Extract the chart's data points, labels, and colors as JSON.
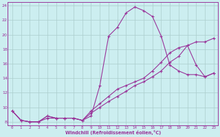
{
  "xlabel": "Windchill (Refroidissement éolien,°C)",
  "bg_color": "#cceef0",
  "line_color": "#993399",
  "grid_color": "#aacccc",
  "xlim": [
    -0.5,
    23.5
  ],
  "ylim": [
    7.5,
    24.5
  ],
  "xticks": [
    0,
    1,
    2,
    3,
    4,
    5,
    6,
    7,
    8,
    9,
    10,
    11,
    12,
    13,
    14,
    15,
    16,
    17,
    18,
    19,
    20,
    21,
    22,
    23
  ],
  "yticks": [
    8,
    10,
    12,
    14,
    16,
    18,
    20,
    22,
    24
  ],
  "line1_x": [
    0,
    1,
    2,
    3,
    4,
    5,
    6,
    7,
    8,
    9,
    10,
    11,
    12,
    13,
    14,
    15,
    16,
    17,
    18,
    19,
    20,
    21,
    22,
    23
  ],
  "line1_y": [
    9.5,
    8.2,
    8.0,
    8.0,
    8.5,
    8.5,
    8.5,
    8.5,
    8.2,
    8.8,
    13.0,
    19.8,
    21.0,
    23.0,
    23.8,
    23.3,
    22.5,
    19.8,
    15.8,
    15.0,
    14.5,
    14.5,
    14.2,
    14.7
  ],
  "line2_x": [
    0,
    1,
    2,
    3,
    4,
    5,
    6,
    7,
    8,
    9,
    10,
    11,
    12,
    13,
    14,
    15,
    16,
    17,
    18,
    19,
    20,
    21,
    22,
    23
  ],
  "line2_y": [
    9.5,
    8.2,
    8.0,
    8.0,
    8.8,
    8.5,
    8.5,
    8.5,
    8.2,
    9.5,
    10.5,
    11.5,
    12.5,
    13.0,
    13.5,
    14.0,
    15.0,
    16.2,
    17.5,
    18.2,
    18.5,
    15.8,
    14.2,
    14.7
  ],
  "line3_x": [
    0,
    1,
    2,
    3,
    4,
    5,
    6,
    7,
    8,
    9,
    10,
    11,
    12,
    13,
    14,
    15,
    16,
    17,
    18,
    19,
    20,
    21,
    22,
    23
  ],
  "line3_y": [
    9.5,
    8.2,
    8.0,
    8.0,
    8.8,
    8.5,
    8.5,
    8.5,
    8.2,
    9.2,
    10.0,
    10.8,
    11.5,
    12.2,
    13.0,
    13.5,
    14.2,
    15.0,
    16.2,
    17.0,
    18.5,
    19.0,
    19.0,
    19.5
  ]
}
